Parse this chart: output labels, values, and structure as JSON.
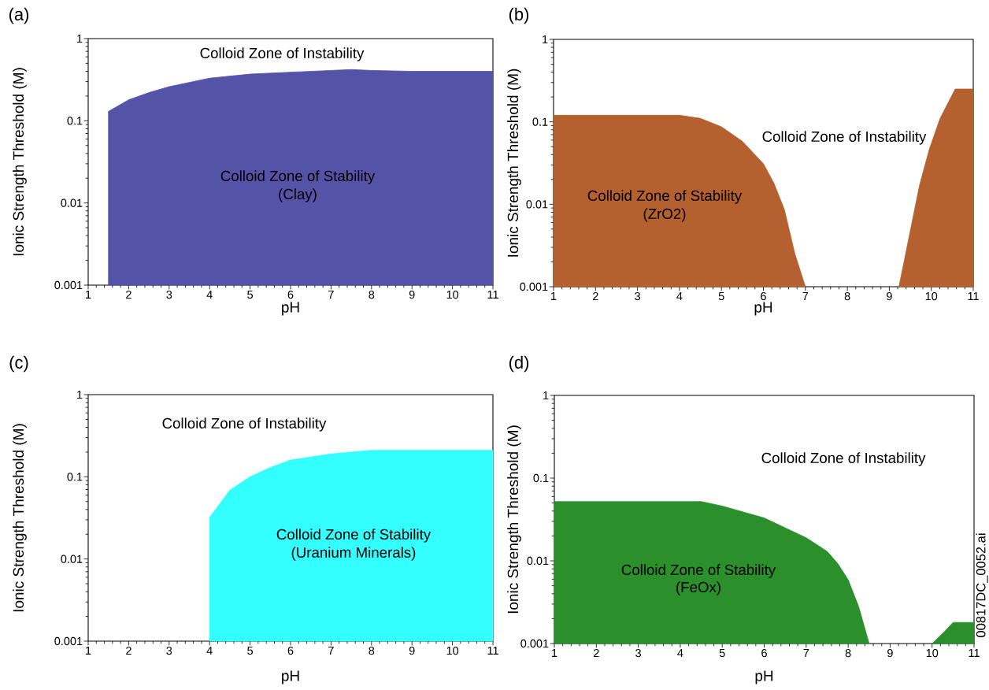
{
  "chart_data": [
    {
      "type": "area",
      "title": "(a)",
      "xlabel": "pH",
      "ylabel": "Ionic Strength Threshold (M)",
      "log": "y",
      "xlim": [
        1,
        11
      ],
      "xticks": [
        1,
        2,
        3,
        4,
        5,
        6,
        7,
        8,
        9,
        10,
        11
      ],
      "ylim": [
        0.001,
        1
      ],
      "yticks": [
        0.001,
        0.01,
        0.1,
        1
      ],
      "series": [
        {
          "color": "#5553a8",
          "x": [
            1.5,
            2,
            2.5,
            3,
            4,
            5,
            6,
            7,
            7.5,
            8,
            9,
            10,
            11
          ],
          "values": [
            0.13,
            0.18,
            0.22,
            0.26,
            0.33,
            0.37,
            0.39,
            0.41,
            0.42,
            0.41,
            0.4,
            0.4,
            0.4
          ]
        }
      ],
      "annotations": [
        "Colloid Zone of Instability",
        "Colloid Zone of Stability",
        "(Clay)"
      ]
    },
    {
      "type": "area",
      "title": "(b)",
      "xlabel": "pH",
      "ylabel": "Ionic Strength Threshold (M)",
      "log": "y",
      "xlim": [
        1,
        11
      ],
      "xticks": [
        1,
        2,
        3,
        4,
        5,
        6,
        7,
        8,
        9,
        10,
        11
      ],
      "ylim": [
        0.001,
        1
      ],
      "yticks": [
        0.001,
        0.01,
        0.1,
        1
      ],
      "series": [
        {
          "color": "#b5602f",
          "x": [
            1,
            4,
            4.5,
            5,
            5.5,
            6,
            6.25,
            6.5,
            6.75,
            7
          ],
          "values": [
            0.12,
            0.12,
            0.11,
            0.087,
            0.058,
            0.031,
            0.018,
            0.0086,
            0.0025,
            0.001
          ]
        },
        {
          "color": "#b5602f",
          "x": [
            9.23,
            9.72,
            9.95,
            10.21,
            10.57,
            11
          ],
          "values": [
            0.001,
            0.017,
            0.046,
            0.11,
            0.25,
            0.25
          ]
        }
      ],
      "annotations": [
        "Colloid Zone of Instability",
        "Colloid Zone of Stability",
        "(ZrO2)"
      ]
    },
    {
      "type": "area",
      "title": "(c)",
      "xlabel": "pH",
      "ylabel": "Ionic Strength Threshold (M)",
      "log": "y",
      "xlim": [
        1,
        11
      ],
      "xticks": [
        1,
        2,
        3,
        4,
        5,
        6,
        7,
        8,
        9,
        10,
        11
      ],
      "ylim": [
        0.001,
        1
      ],
      "yticks": [
        0.001,
        0.01,
        0.1,
        1
      ],
      "series": [
        {
          "color": "#33ffff",
          "x": [
            4,
            4.5,
            5,
            5.5,
            6,
            7,
            8,
            9,
            11
          ],
          "values": [
            0.032,
            0.069,
            0.1,
            0.13,
            0.16,
            0.19,
            0.21,
            0.21,
            0.21
          ]
        }
      ],
      "annotations": [
        "Colloid Zone of Instability",
        "Colloid Zone of Stability",
        "(Uranium Minerals)"
      ]
    },
    {
      "type": "area",
      "title": "(d)",
      "xlabel": "pH",
      "ylabel": "Ionic Strength Threshold (M)",
      "log": "y",
      "xlim": [
        1,
        11
      ],
      "xticks": [
        1,
        2,
        3,
        4,
        5,
        6,
        7,
        8,
        9,
        10,
        11
      ],
      "ylim": [
        0.001,
        1
      ],
      "yticks": [
        0.001,
        0.01,
        0.1,
        1
      ],
      "series": [
        {
          "color": "#2b8f2b",
          "x": [
            1,
            4.5,
            5,
            6,
            7,
            7.5,
            7.75,
            8,
            8.25,
            8.5
          ],
          "values": [
            0.052,
            0.052,
            0.046,
            0.033,
            0.019,
            0.013,
            0.0093,
            0.0059,
            0.0028,
            0.001
          ]
        },
        {
          "color": "#2b8f2b",
          "x": [
            10,
            10.3,
            10.5,
            11
          ],
          "values": [
            0.001,
            0.0014,
            0.0018,
            0.0018
          ]
        }
      ],
      "annotations": [
        "Colloid Zone of Instability",
        "Colloid Zone of Stability",
        "(FeOx)",
        "00817DC_0052.ai"
      ]
    }
  ]
}
